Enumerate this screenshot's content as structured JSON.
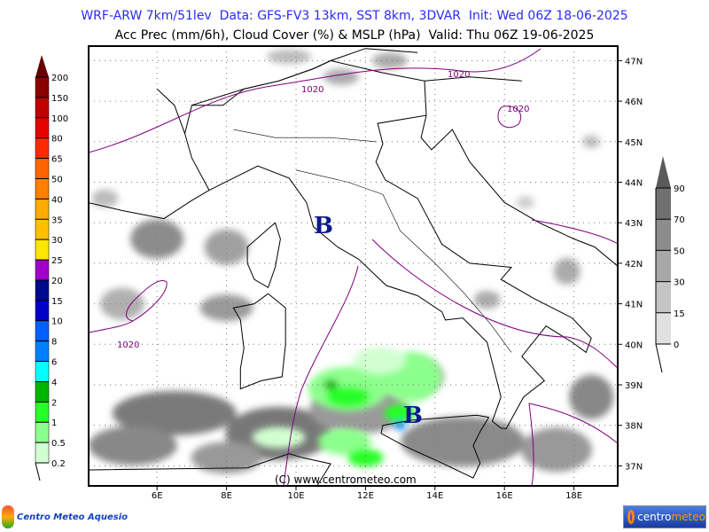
{
  "header": {
    "line1": "WRF-ARW 7km/51lev  Data: GFS-FV3 13km, SST 8km, 3DVAR  Init: Wed 06Z 18-06-2025",
    "line2": "Acc Prec (mm/6h), Cloud Cover (%) & MSLP (hPa)  Valid: Thu 06Z 19-06-2025"
  },
  "precip_legend": {
    "levels": [
      "200",
      "150",
      "100",
      "80",
      "65",
      "50",
      "40",
      "35",
      "30",
      "25",
      "20",
      "15",
      "10",
      "8",
      "6",
      "4",
      "2",
      "1",
      "0.5",
      "0.2"
    ],
    "colors": [
      "#8b0000",
      "#be0000",
      "#e60000",
      "#ff2a00",
      "#ff6400",
      "#ff8000",
      "#ffaa00",
      "#ffc000",
      "#ffe600",
      "#a000c8",
      "#000a8c",
      "#0000c8",
      "#0060ff",
      "#0080ff",
      "#00ffff",
      "#00b400",
      "#28ff28",
      "#8cff8c",
      "#d2ffd2"
    ],
    "top_color": "#640000"
  },
  "cloud_legend": {
    "levels": [
      "90",
      "70",
      "50",
      "30",
      "15",
      "0"
    ],
    "colors": [
      "#707070",
      "#8c8c8c",
      "#a8a8a8",
      "#c4c4c4",
      "#e0e0e0"
    ],
    "top_color": "#5a5a5a"
  },
  "axes": {
    "lat_labels": [
      "47N",
      "46N",
      "45N",
      "44N",
      "43N",
      "42N",
      "41N",
      "40N",
      "39N",
      "38N",
      "37N"
    ],
    "lon_labels": [
      "6E",
      "8E",
      "10E",
      "12E",
      "14E",
      "16E",
      "18E"
    ]
  },
  "map_labels": {
    "isobar_value": "1020",
    "low_marker": "B",
    "copyright": "(C) www.centrometeo.com"
  },
  "colors": {
    "isobar": "#800080",
    "low": "#0a1a8c",
    "coast": "#000000",
    "lakes": "#0000c8"
  },
  "logos": {
    "left": "Centro Meteo Aquesio",
    "right_a": "centro",
    "right_b": "meteo"
  }
}
